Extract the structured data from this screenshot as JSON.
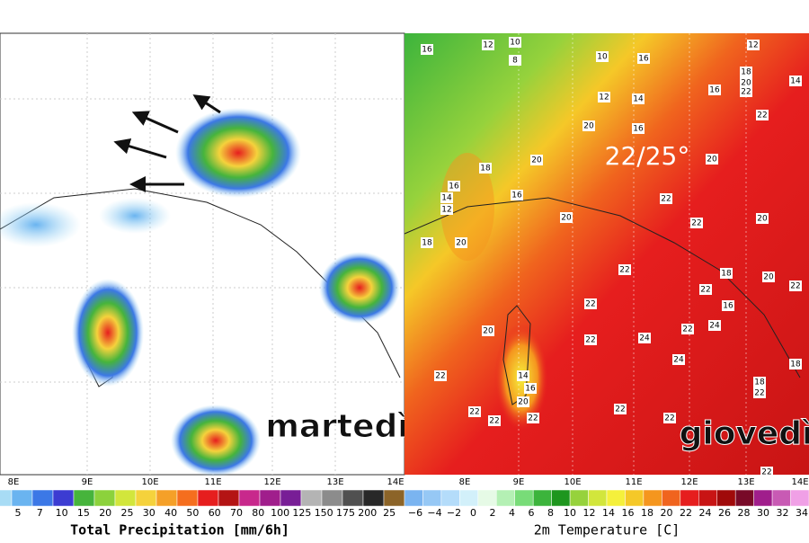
{
  "left_panel": {
    "day_label": "martedì",
    "colorbar_title": "Total Precipitation [mm/6h]",
    "colorbar_labels": [
      "5",
      "7",
      "10",
      "15",
      "20",
      "25",
      "30",
      "40",
      "50",
      "60",
      "70",
      "80",
      "100",
      "125",
      "150",
      "175",
      "200",
      "25"
    ],
    "colorbar_colors": [
      "#a8dcf5",
      "#6ab4f0",
      "#3c78e6",
      "#3c3cd2",
      "#46b43c",
      "#8cd23c",
      "#d2e63c",
      "#f5d23c",
      "#f5a028",
      "#f56e1e",
      "#e61e1e",
      "#b41414",
      "#c8288c",
      "#a01e8c",
      "#781e96",
      "#b4b4b4",
      "#8c8c8c",
      "#505050",
      "#282828",
      "#8c6428"
    ],
    "longitudes": [
      "8E",
      "9E",
      "10E",
      "11E",
      "12E",
      "13E",
      "14E"
    ]
  },
  "right_panel": {
    "day_label": "giovedì",
    "annotation": "22/25°",
    "colorbar_title": "2m Temperature [C]",
    "colorbar_labels": [
      "−6",
      "−4",
      "−2",
      "0",
      "2",
      "4",
      "6",
      "8",
      "10",
      "12",
      "14",
      "16",
      "18",
      "20",
      "22",
      "24",
      "26",
      "28",
      "30",
      "32",
      "34"
    ],
    "colorbar_colors": [
      "#7ab4f0",
      "#96c8f5",
      "#b4dcfa",
      "#d2f0fa",
      "#e6fae6",
      "#b4f0b4",
      "#78dc78",
      "#3cb43c",
      "#1e961e",
      "#96d23c",
      "#d2e63c",
      "#f5f03c",
      "#f5c828",
      "#f5961e",
      "#f0641e",
      "#e61e1e",
      "#c81414",
      "#a00a0a",
      "#780a28",
      "#a01e8c",
      "#c85ab4",
      "#f0a0e6"
    ],
    "longitudes": [
      "8E",
      "9E",
      "10E",
      "11E",
      "12E",
      "13E",
      "14E"
    ],
    "map_labels": [
      "16",
      "12",
      "10",
      "8",
      "10",
      "16",
      "12",
      "18",
      "20",
      "22",
      "14",
      "16",
      "12",
      "14",
      "20",
      "16",
      "22",
      "18",
      "20",
      "16",
      "14",
      "12",
      "16",
      "22",
      "20",
      "22",
      "20",
      "18",
      "20",
      "20",
      "22",
      "20",
      "18",
      "22",
      "22",
      "16",
      "22",
      "20",
      "14",
      "16",
      "20",
      "22",
      "24",
      "22",
      "24",
      "24",
      "18",
      "22",
      "18",
      "22",
      "22",
      "22",
      "22",
      "22",
      "22",
      "22"
    ]
  }
}
